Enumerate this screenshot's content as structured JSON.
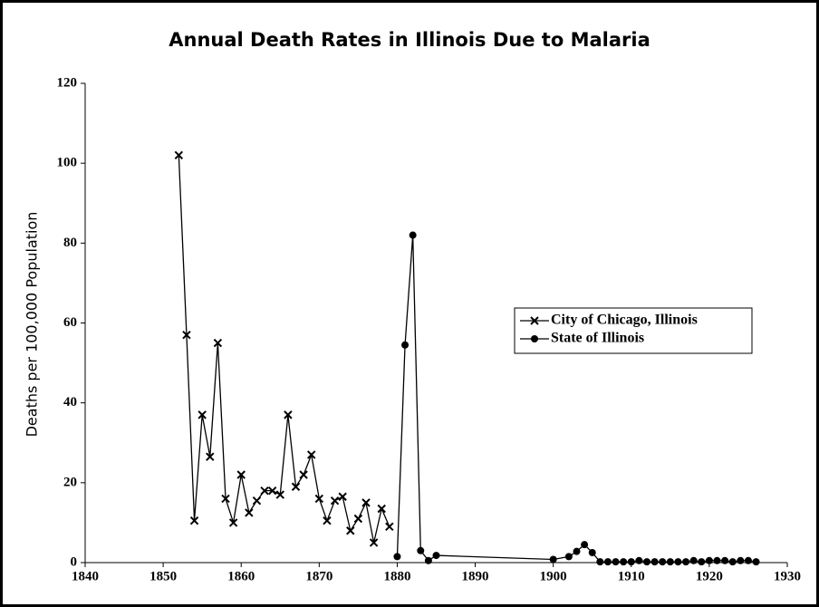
{
  "chart_data": {
    "type": "line",
    "title": "Annual Death Rates in Illinois Due to Malaria",
    "ylabel": "Deaths per 100,000 Population",
    "xlim": [
      1840,
      1930
    ],
    "xticks": [
      1840,
      1850,
      1860,
      1870,
      1880,
      1890,
      1900,
      1910,
      1920,
      1930
    ],
    "ylim": [
      0,
      120
    ],
    "yticks": [
      0,
      20,
      40,
      60,
      80,
      100,
      120
    ],
    "grid": false,
    "legend": "right",
    "series": [
      {
        "name": "City of Chicago, Illinois",
        "color": "#000000",
        "marker": "x",
        "x": [
          1852,
          1853,
          1854,
          1855,
          1856,
          1857,
          1858,
          1859,
          1860,
          1861,
          1862,
          1863,
          1864,
          1865,
          1866,
          1867,
          1868,
          1869,
          1870,
          1871,
          1872,
          1873,
          1874,
          1875,
          1876,
          1877,
          1878,
          1879
        ],
        "values": [
          102,
          57,
          10.5,
          37,
          26.5,
          55,
          16,
          10,
          22,
          12.5,
          15.5,
          18,
          18,
          17,
          37,
          19,
          22,
          27,
          16,
          10.5,
          15.5,
          16.5,
          8,
          11,
          15,
          5,
          13.5,
          9
        ]
      },
      {
        "name": "State of Illinois",
        "color": "#000000",
        "marker": "o",
        "x": [
          1880,
          1881,
          1882,
          1883,
          1884,
          1885,
          1900,
          1902,
          1903,
          1904,
          1905,
          1906,
          1907,
          1908,
          1909,
          1910,
          1911,
          1912,
          1913,
          1914,
          1915,
          1916,
          1917,
          1918,
          1919,
          1920,
          1921,
          1922,
          1923,
          1924,
          1925,
          1926
        ],
        "values": [
          1.5,
          54.5,
          82,
          3,
          0.5,
          1.8,
          0.8,
          1.5,
          2.8,
          4.5,
          2.5,
          0.2,
          0.2,
          0.2,
          0.2,
          0.2,
          0.5,
          0.2,
          0.2,
          0.2,
          0.2,
          0.2,
          0.2,
          0.5,
          0.2,
          0.5,
          0.5,
          0.5,
          0.2,
          0.5,
          0.5,
          0.2
        ]
      }
    ]
  }
}
